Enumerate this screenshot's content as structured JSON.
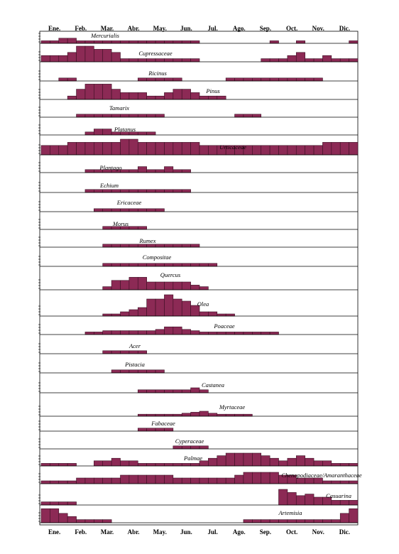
{
  "chart_data": {
    "type": "bar",
    "title": "",
    "xlabel": "",
    "ylabel": "",
    "months": [
      "Ene.",
      "Feb.",
      "Mar.",
      "Abr.",
      "May.",
      "Jun.",
      "Jul.",
      "Ago.",
      "Sep.",
      "Oct.",
      "Nov.",
      "Dic."
    ],
    "periods_per_month": 3,
    "value_scale": "relative 0-1",
    "series": [
      {
        "name": "Mercurialis",
        "values": [
          0.2,
          0.2,
          0.4,
          0.4,
          0.2,
          0.2,
          0.2,
          0.2,
          0.2,
          0.2,
          0.2,
          0.2,
          0.2,
          0.2,
          0.2,
          0.2,
          0.2,
          0.2,
          0,
          0,
          0,
          0,
          0,
          0,
          0,
          0,
          0.2,
          0,
          0,
          0.2,
          0,
          0,
          0,
          0,
          0,
          0.2
        ]
      },
      {
        "name": "Cupressaceae",
        "values": [
          0.4,
          0.4,
          0.4,
          0.6,
          1.0,
          1.0,
          0.8,
          0.8,
          0.6,
          0.2,
          0.2,
          0.2,
          0.2,
          0.2,
          0.2,
          0.2,
          0.2,
          0.2,
          0,
          0,
          0,
          0,
          0,
          0,
          0,
          0.2,
          0.2,
          0.2,
          0.4,
          0.6,
          0.2,
          0.2,
          0.4,
          0.2,
          0.2,
          0.2
        ]
      },
      {
        "name": "Ricinus",
        "values": [
          0,
          0,
          0.3,
          0.3,
          0,
          0,
          0,
          0,
          0,
          0,
          0,
          0.3,
          0.3,
          0.3,
          0.3,
          0.3,
          0,
          0,
          0,
          0,
          0,
          0.3,
          0.3,
          0.3,
          0.3,
          0.3,
          0.3,
          0.3,
          0.3,
          0.3,
          0.3,
          0.3,
          0,
          0,
          0,
          0
        ]
      },
      {
        "name": "Pinus",
        "values": [
          0,
          0,
          0,
          0.2,
          0.6,
          0.9,
          0.9,
          0.9,
          0.6,
          0.4,
          0.4,
          0.4,
          0.2,
          0.2,
          0.4,
          0.6,
          0.6,
          0.4,
          0.2,
          0.2,
          0.2,
          0,
          0,
          0,
          0,
          0,
          0,
          0,
          0,
          0,
          0,
          0,
          0,
          0,
          0,
          0
        ]
      },
      {
        "name": "Tamarix",
        "values": [
          0,
          0,
          0,
          0,
          0.3,
          0.3,
          0.3,
          0.3,
          0.3,
          0.3,
          0.3,
          0.3,
          0.3,
          0.3,
          0,
          0,
          0,
          0,
          0,
          0,
          0,
          0,
          0.3,
          0.3,
          0.3,
          0,
          0,
          0,
          0,
          0,
          0,
          0,
          0,
          0,
          0,
          0
        ]
      },
      {
        "name": "Platanus",
        "values": [
          0,
          0,
          0,
          0,
          0,
          0.3,
          0.6,
          0.6,
          0.3,
          0.3,
          0.3,
          0.3,
          0.3,
          0,
          0,
          0,
          0,
          0,
          0,
          0,
          0,
          0,
          0,
          0,
          0,
          0,
          0,
          0,
          0,
          0,
          0,
          0,
          0,
          0,
          0,
          0
        ]
      },
      {
        "name": "Urticaceae",
        "values": [
          0.6,
          0.6,
          0.6,
          0.8,
          0.8,
          0.8,
          0.8,
          0.8,
          0.8,
          1.0,
          1.0,
          0.8,
          0.8,
          0.8,
          0.8,
          0.8,
          0.8,
          0.8,
          0.6,
          0.6,
          0.6,
          0.6,
          0.6,
          0.6,
          0.6,
          0.6,
          0.6,
          0.6,
          0.6,
          0.6,
          0.6,
          0.6,
          0.8,
          0.8,
          0.8,
          0.8
        ]
      },
      {
        "name": "Plantago",
        "values": [
          0,
          0,
          0,
          0,
          0,
          0.3,
          0.3,
          0.3,
          0.3,
          0.3,
          0.3,
          0.6,
          0.3,
          0.3,
          0.6,
          0.3,
          0.3,
          0,
          0,
          0,
          0,
          0,
          0,
          0,
          0,
          0,
          0,
          0,
          0,
          0,
          0,
          0,
          0,
          0,
          0,
          0
        ]
      },
      {
        "name": "Echium",
        "values": [
          0,
          0,
          0,
          0,
          0,
          0.3,
          0.3,
          0.3,
          0.3,
          0.3,
          0.3,
          0.3,
          0.3,
          0.3,
          0.3,
          0.3,
          0.3,
          0,
          0,
          0,
          0,
          0,
          0,
          0,
          0,
          0,
          0,
          0,
          0,
          0,
          0,
          0,
          0,
          0,
          0,
          0
        ]
      },
      {
        "name": "Ericaceae",
        "values": [
          0,
          0,
          0,
          0,
          0,
          0,
          0.3,
          0.3,
          0.3,
          0.3,
          0.3,
          0.3,
          0.3,
          0.3,
          0,
          0,
          0,
          0,
          0,
          0,
          0,
          0,
          0,
          0,
          0,
          0,
          0,
          0,
          0,
          0,
          0,
          0,
          0,
          0,
          0,
          0
        ]
      },
      {
        "name": "Morus",
        "values": [
          0,
          0,
          0,
          0,
          0,
          0,
          0,
          0.3,
          0.3,
          0.3,
          0.3,
          0.3,
          0,
          0,
          0,
          0,
          0,
          0,
          0,
          0,
          0,
          0,
          0,
          0,
          0,
          0,
          0,
          0,
          0,
          0,
          0,
          0,
          0,
          0,
          0,
          0
        ]
      },
      {
        "name": "Rumex",
        "values": [
          0,
          0,
          0,
          0,
          0,
          0,
          0,
          0.3,
          0.3,
          0.3,
          0.3,
          0.3,
          0.3,
          0.3,
          0.3,
          0.3,
          0.3,
          0.3,
          0,
          0,
          0,
          0,
          0,
          0,
          0,
          0,
          0,
          0,
          0,
          0,
          0,
          0,
          0,
          0,
          0,
          0
        ]
      },
      {
        "name": "Compositae",
        "values": [
          0,
          0,
          0,
          0,
          0,
          0,
          0,
          0.3,
          0.3,
          0.3,
          0.3,
          0.3,
          0.3,
          0.3,
          0.3,
          0.3,
          0.3,
          0.3,
          0.3,
          0.3,
          0,
          0,
          0,
          0,
          0,
          0,
          0,
          0,
          0,
          0,
          0,
          0,
          0,
          0,
          0,
          0
        ]
      },
      {
        "name": "Quercus",
        "values": [
          0,
          0,
          0,
          0,
          0,
          0,
          0,
          0.2,
          0.6,
          0.6,
          0.8,
          0.8,
          0.5,
          0.5,
          0.5,
          0.5,
          0.5,
          0.3,
          0.2,
          0,
          0,
          0,
          0,
          0,
          0,
          0,
          0,
          0,
          0,
          0,
          0,
          0,
          0,
          0,
          0,
          0
        ]
      },
      {
        "name": "Olea",
        "values": [
          0,
          0,
          0,
          0,
          0,
          0,
          0,
          0.1,
          0.1,
          0.2,
          0.3,
          0.4,
          0.8,
          0.8,
          1.0,
          0.8,
          0.7,
          0.5,
          0.2,
          0.2,
          0.1,
          0.1,
          0,
          0,
          0,
          0,
          0,
          0,
          0,
          0,
          0,
          0,
          0,
          0,
          0,
          0
        ]
      },
      {
        "name": "Poaceae",
        "values": [
          0,
          0,
          0,
          0,
          0,
          0.2,
          0.2,
          0.3,
          0.3,
          0.3,
          0.3,
          0.3,
          0.3,
          0.4,
          0.6,
          0.6,
          0.4,
          0.3,
          0.2,
          0.2,
          0.2,
          0.2,
          0.2,
          0.2,
          0.2,
          0.2,
          0.2,
          0,
          0,
          0,
          0,
          0,
          0,
          0,
          0,
          0
        ]
      },
      {
        "name": "Acer",
        "values": [
          0,
          0,
          0,
          0,
          0,
          0,
          0,
          0.3,
          0.3,
          0.3,
          0.3,
          0.3,
          0,
          0,
          0,
          0,
          0,
          0,
          0,
          0,
          0,
          0,
          0,
          0,
          0,
          0,
          0,
          0,
          0,
          0,
          0,
          0,
          0,
          0,
          0,
          0
        ]
      },
      {
        "name": "Pistacia",
        "values": [
          0,
          0,
          0,
          0,
          0,
          0,
          0,
          0,
          0.3,
          0.3,
          0.3,
          0.3,
          0.3,
          0.3,
          0,
          0,
          0,
          0,
          0,
          0,
          0,
          0,
          0,
          0,
          0,
          0,
          0,
          0,
          0,
          0,
          0,
          0,
          0,
          0,
          0,
          0
        ]
      },
      {
        "name": "Castanea",
        "values": [
          0,
          0,
          0,
          0,
          0,
          0,
          0,
          0,
          0,
          0,
          0,
          0.3,
          0.3,
          0.3,
          0.3,
          0.3,
          0.3,
          0.5,
          0.3,
          0,
          0,
          0,
          0,
          0,
          0,
          0,
          0,
          0,
          0,
          0,
          0,
          0,
          0,
          0,
          0,
          0
        ]
      },
      {
        "name": "Myrtaceae",
        "values": [
          0,
          0,
          0,
          0,
          0,
          0,
          0,
          0,
          0,
          0,
          0,
          0.2,
          0.2,
          0.2,
          0.2,
          0.2,
          0.3,
          0.4,
          0.5,
          0.3,
          0.2,
          0.2,
          0.2,
          0.2,
          0,
          0,
          0,
          0,
          0,
          0,
          0,
          0,
          0,
          0,
          0,
          0
        ]
      },
      {
        "name": "Fabaceae",
        "values": [
          0,
          0,
          0,
          0,
          0,
          0,
          0,
          0,
          0,
          0,
          0,
          0.3,
          0.3,
          0.3,
          0.3,
          0,
          0,
          0,
          0,
          0,
          0,
          0,
          0,
          0,
          0,
          0,
          0,
          0,
          0,
          0,
          0,
          0,
          0,
          0,
          0,
          0
        ]
      },
      {
        "name": "Cyperaceae",
        "values": [
          0,
          0,
          0,
          0,
          0,
          0,
          0,
          0,
          0,
          0,
          0,
          0,
          0,
          0,
          0,
          0.3,
          0.3,
          0.3,
          0.3,
          0,
          0,
          0,
          0,
          0,
          0,
          0,
          0,
          0,
          0,
          0,
          0,
          0,
          0,
          0,
          0,
          0
        ]
      },
      {
        "name": "Palmae",
        "values": [
          0.2,
          0.2,
          0.2,
          0.2,
          0,
          0,
          0.4,
          0.4,
          0.6,
          0.4,
          0.4,
          0.2,
          0.2,
          0.2,
          0.2,
          0.2,
          0.2,
          0.2,
          0.4,
          0.6,
          0.8,
          1.0,
          1.0,
          1.0,
          1.0,
          0.8,
          0.6,
          0.4,
          0.6,
          0.8,
          0.6,
          0.4,
          0.4,
          0.2,
          0.2,
          0.2
        ]
      },
      {
        "name": "Chenopodiaceae/Amaranthaceae",
        "values": [
          0.2,
          0.2,
          0.2,
          0.2,
          0.4,
          0.4,
          0.4,
          0.4,
          0.4,
          0.6,
          0.6,
          0.6,
          0.6,
          0.6,
          0.6,
          0.4,
          0.4,
          0.4,
          0.4,
          0.4,
          0.4,
          0.4,
          0.6,
          0.8,
          0.8,
          0.8,
          0.8,
          0.6,
          0.6,
          0.4,
          0.4,
          0.4,
          0.2,
          0.2,
          0.2,
          0.2
        ]
      },
      {
        "name": "Casuarina",
        "values": [
          0.2,
          0.2,
          0.2,
          0.2,
          0,
          0,
          0,
          0,
          0,
          0,
          0,
          0,
          0,
          0,
          0,
          0,
          0,
          0,
          0,
          0,
          0,
          0,
          0,
          0,
          0,
          0,
          0,
          1.0,
          0.8,
          0.6,
          0.7,
          0.5,
          0.5,
          0.3,
          0.3,
          0.3
        ]
      },
      {
        "name": "Artemisia",
        "values": [
          0.9,
          0.9,
          0.6,
          0.4,
          0.2,
          0.2,
          0.2,
          0.2,
          0,
          0,
          0,
          0,
          0,
          0,
          0,
          0,
          0,
          0,
          0,
          0,
          0,
          0,
          0,
          0.2,
          0.2,
          0.2,
          0.2,
          0.2,
          0.2,
          0.2,
          0.2,
          0.2,
          0.2,
          0.2,
          0.6,
          0.9
        ]
      }
    ],
    "colors": {
      "bar_fill": "#8c2a55",
      "bar_stroke": "#3a0f22",
      "axis": "#000000"
    },
    "grid": false,
    "legend": "none"
  }
}
